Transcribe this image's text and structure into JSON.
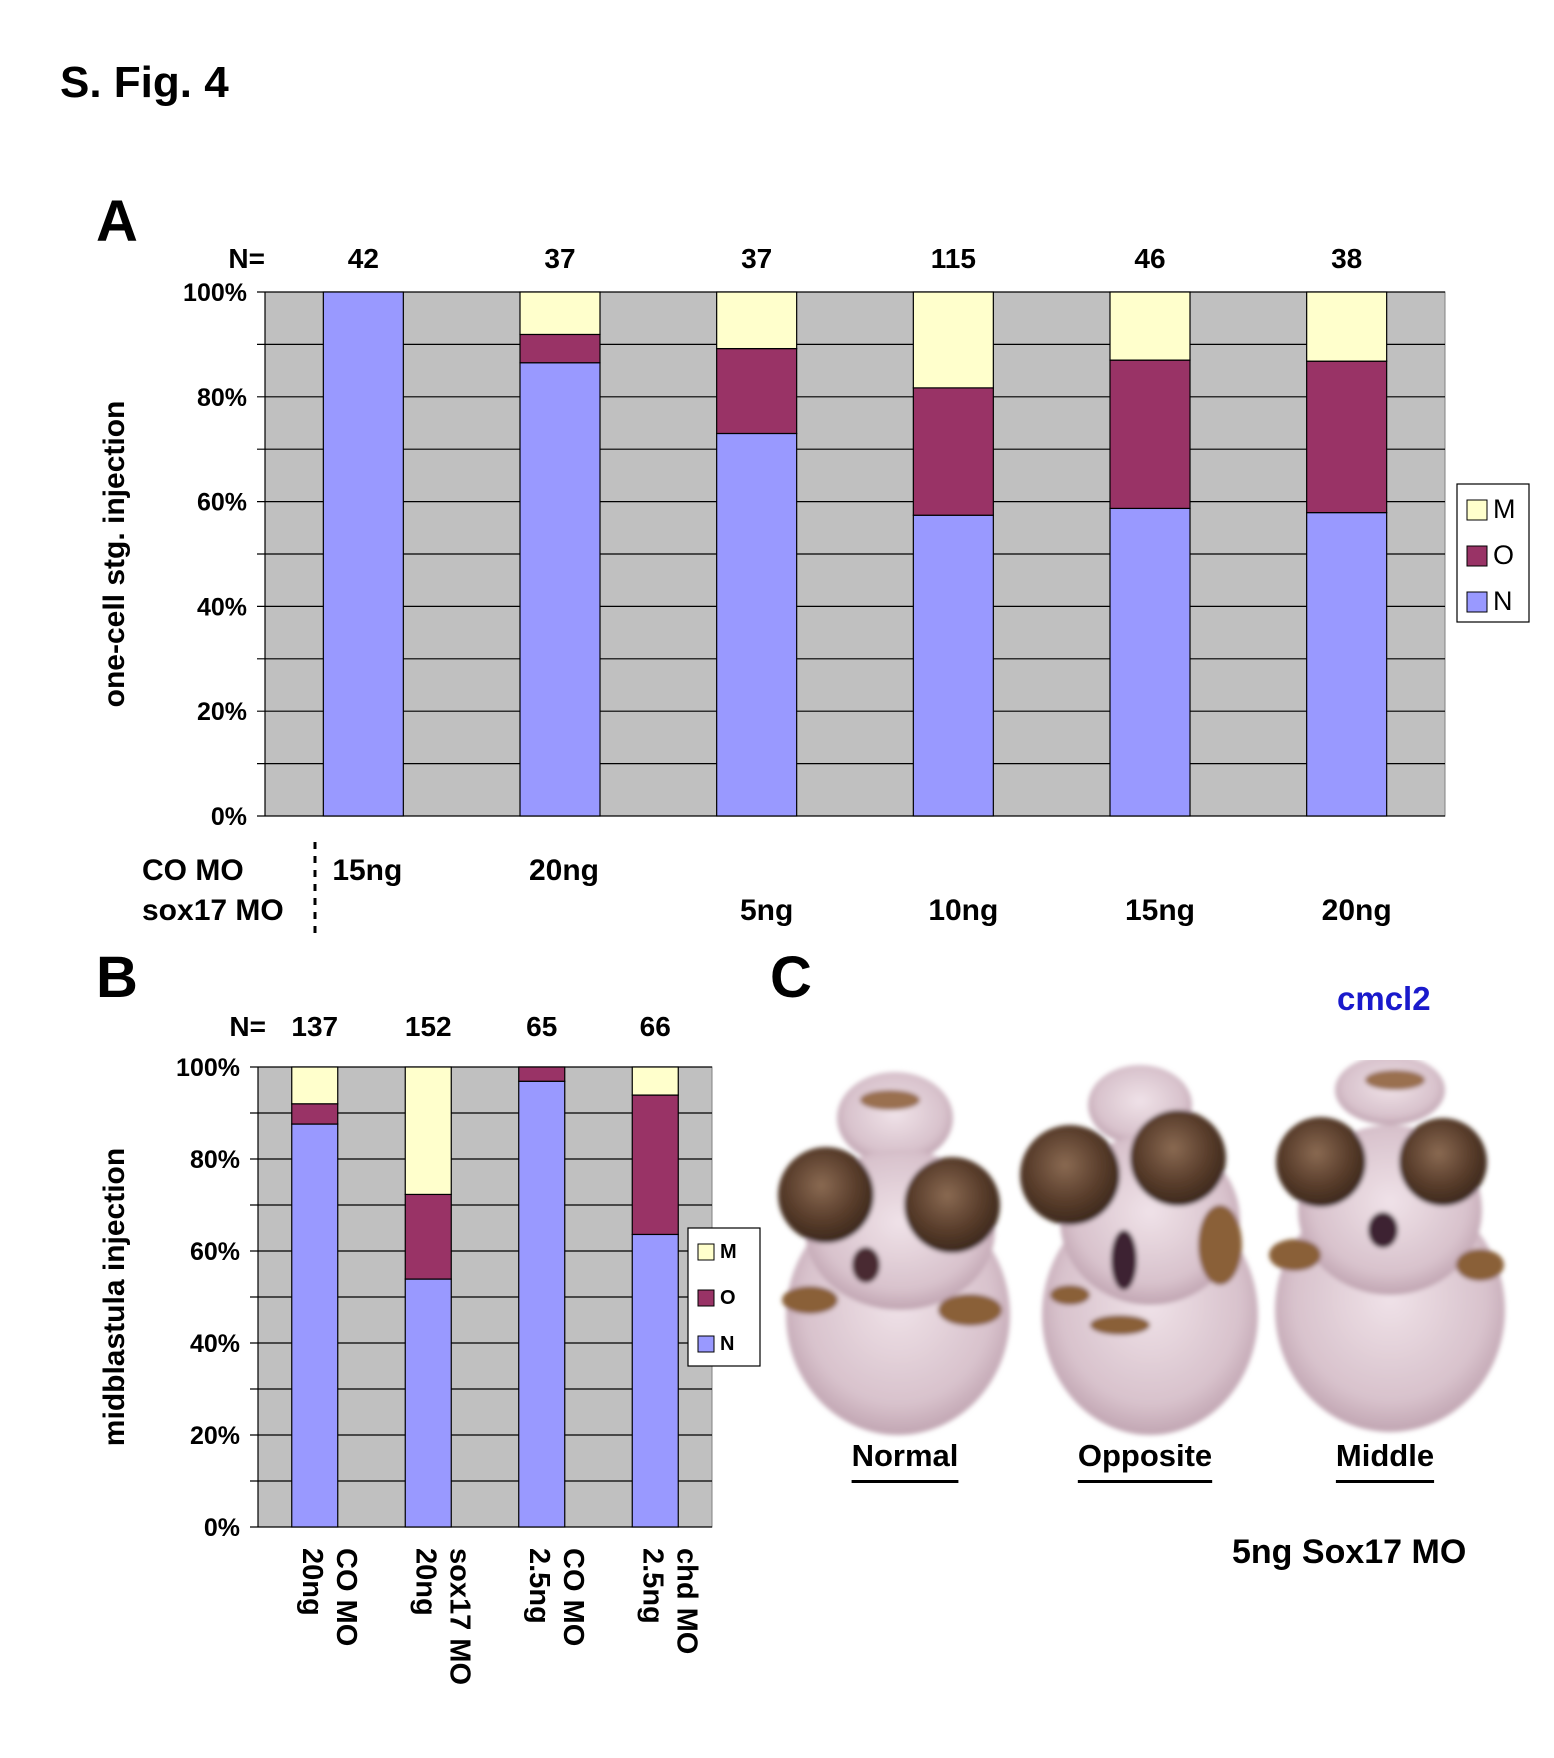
{
  "figure": {
    "title": "S. Fig. 4",
    "panel_a": "A",
    "panel_b": "B",
    "panel_c": "C"
  },
  "colors": {
    "M": "#ffffcc",
    "O": "#993366",
    "N": "#9999ff",
    "plot_bg": "#c0c0c0",
    "gene_label": "#1a1acc"
  },
  "chart_data": [
    {
      "id": "A",
      "type": "bar",
      "stacked": true,
      "percent": true,
      "ylabel": "one-cell stg. injection",
      "ylim": [
        0,
        100
      ],
      "yticks": [
        "0%",
        "20%",
        "40%",
        "60%",
        "80%",
        "100%"
      ],
      "grid": true,
      "n_label": "N=",
      "n_values": [
        "42",
        "37",
        "37",
        "115",
        "46",
        "38"
      ],
      "row_labels": [
        "CO MO",
        "sox17 MO"
      ],
      "categories": [
        {
          "co": "15ng",
          "sox17": ""
        },
        {
          "co": "20ng",
          "sox17": ""
        },
        {
          "co": "",
          "sox17": "5ng"
        },
        {
          "co": "",
          "sox17": "10ng"
        },
        {
          "co": "",
          "sox17": "15ng"
        },
        {
          "co": "",
          "sox17": "20ng"
        }
      ],
      "series": [
        {
          "name": "N",
          "values": [
            100,
            86.5,
            73,
            57.4,
            58.7,
            57.9
          ]
        },
        {
          "name": "O",
          "values": [
            0,
            5.4,
            16.2,
            24.3,
            28.3,
            28.9
          ]
        },
        {
          "name": "M",
          "values": [
            0,
            8.1,
            10.8,
            18.3,
            13.0,
            13.2
          ]
        }
      ],
      "legend": [
        "M",
        "O",
        "N"
      ],
      "legend_position": "right"
    },
    {
      "id": "B",
      "type": "bar",
      "stacked": true,
      "percent": true,
      "ylabel": "midblastula injection",
      "ylim": [
        0,
        100
      ],
      "yticks": [
        "0%",
        "20%",
        "40%",
        "60%",
        "80%",
        "100%"
      ],
      "grid": true,
      "n_label": "N=",
      "n_values": [
        "137",
        "152",
        "65",
        "66"
      ],
      "categories": [
        {
          "name": "CO MO",
          "dose": "20ng"
        },
        {
          "name": "sox17 MO",
          "dose": "20ng"
        },
        {
          "name": "CO MO",
          "dose": "2.5ng"
        },
        {
          "name": "chd MO",
          "dose": "2.5ng"
        }
      ],
      "series": [
        {
          "name": "N",
          "values": [
            87.6,
            53.9,
            96.9,
            63.6
          ]
        },
        {
          "name": "O",
          "values": [
            4.4,
            18.4,
            3.1,
            30.3
          ]
        },
        {
          "name": "M",
          "values": [
            8.0,
            27.7,
            0,
            6.1
          ]
        }
      ],
      "legend": [
        "M",
        "O",
        "N"
      ],
      "legend_position": "right"
    }
  ],
  "panel_c": {
    "gene": "cmcl2",
    "embryos": [
      "Normal",
      "Opposite",
      "Middle"
    ],
    "caption": "5ng Sox17 MO"
  }
}
